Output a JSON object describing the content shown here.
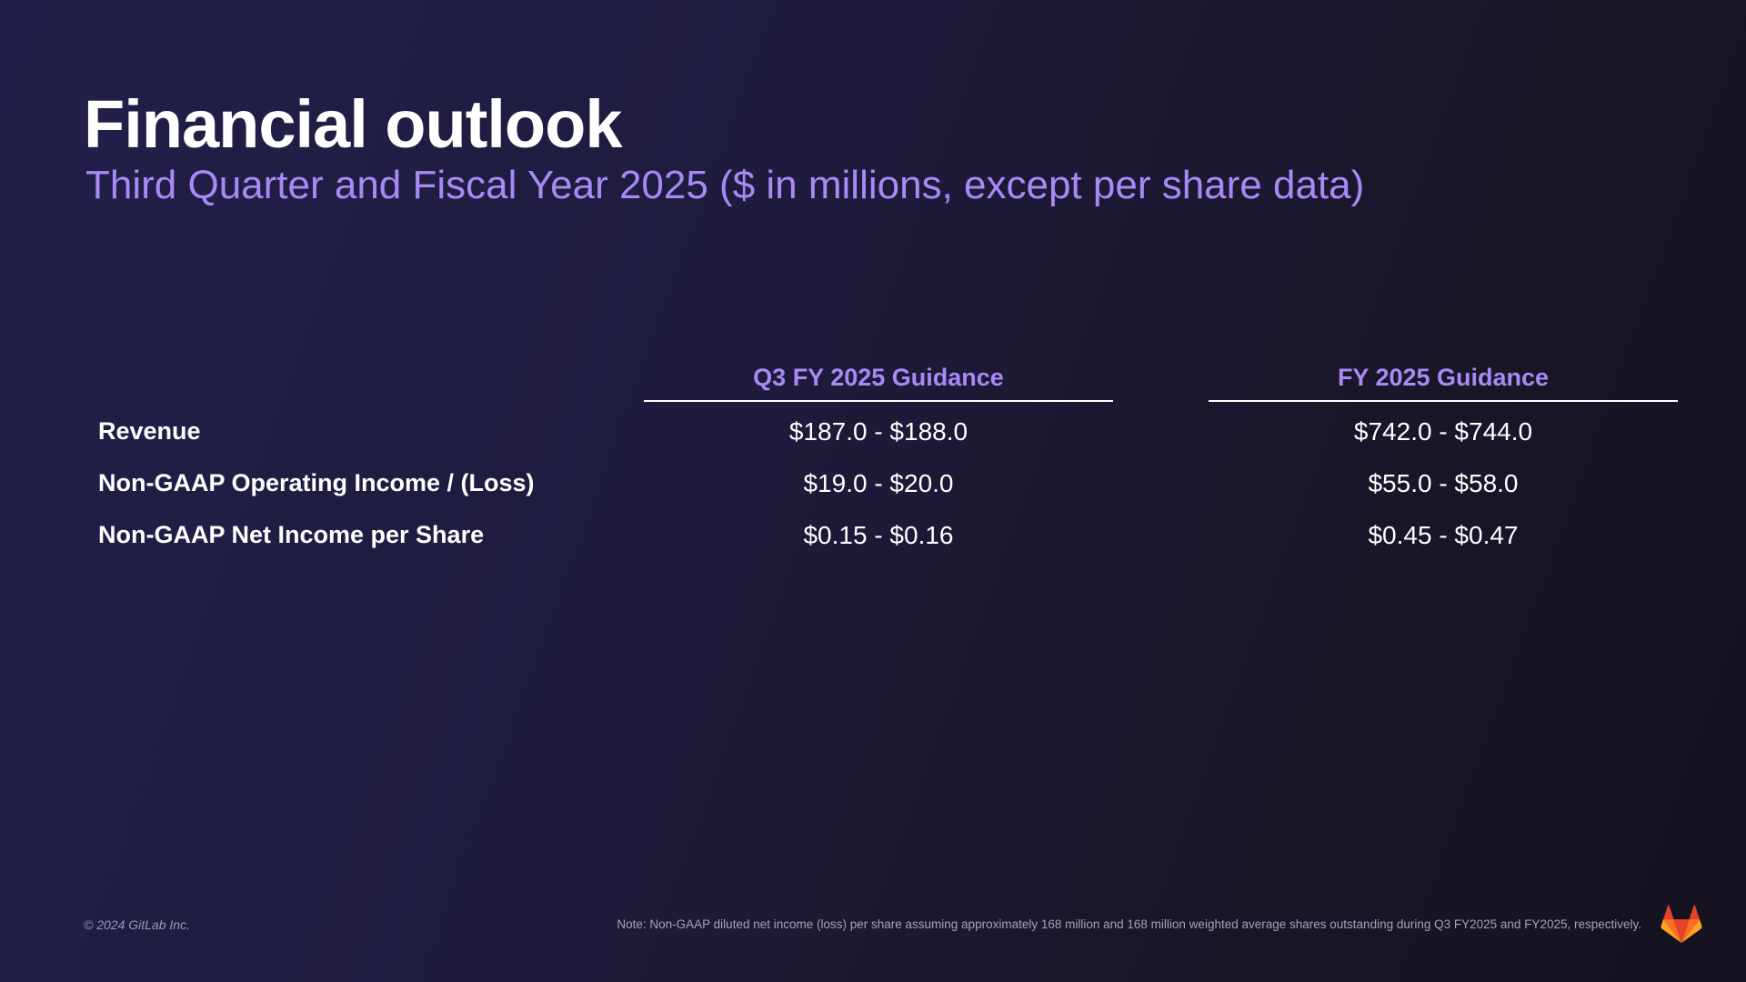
{
  "slide": {
    "title": "Financial outlook",
    "subtitle": "Third Quarter and Fiscal Year 2025 ($ in millions, except per share data)"
  },
  "table": {
    "columns": [
      "Q3 FY 2025 Guidance",
      "FY 2025 Guidance"
    ],
    "rows": [
      {
        "label": "Revenue",
        "q3": "$187.0 - $188.0",
        "fy": "$742.0 - $744.0"
      },
      {
        "label": "Non-GAAP Operating Income / (Loss)",
        "q3": "$19.0 - $20.0",
        "fy": "$55.0 - $58.0"
      },
      {
        "label": "Non-GAAP Net Income per Share",
        "q3": "$0.15 - $0.16",
        "fy": "$0.45 - $0.47"
      }
    ]
  },
  "footer": {
    "copyright": "© 2024 GitLab Inc.",
    "note": "Note: Non-GAAP diluted net income (loss) per share assuming approximately 168 million and 168 million weighted average shares outstanding during Q3 FY2025 and FY2025, respectively.",
    "logo_icon": "gitlab-tanuki-icon"
  },
  "colors": {
    "accent": "#a989f5",
    "background": "#1e1b3e",
    "text": "#ffffff"
  }
}
